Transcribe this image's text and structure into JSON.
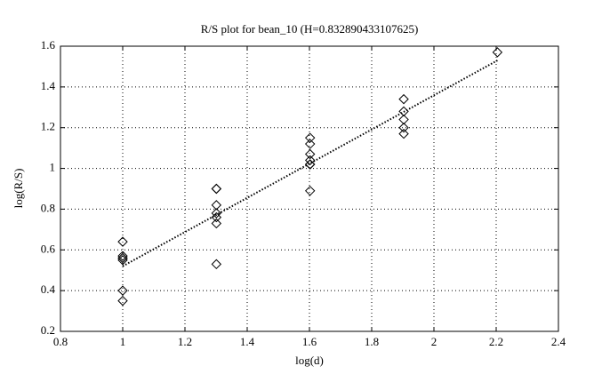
{
  "chart_data": {
    "type": "scatter",
    "title": "R/S plot for bean_10 (H=0.832890433107625)",
    "x_label": "log(d)",
    "y_label": "log(R/S)",
    "x": [
      1,
      1,
      1,
      1,
      1,
      1,
      1,
      1.301,
      1.301,
      1.301,
      1.301,
      1.301,
      1.301,
      1.301,
      1.602,
      1.602,
      1.602,
      1.602,
      1.602,
      1.602,
      1.602,
      1.903,
      1.903,
      1.903,
      1.903,
      1.903,
      2.204
    ],
    "values": [
      0.64,
      0.57,
      0.56,
      0.56,
      0.55,
      0.4,
      0.35,
      0.9,
      0.9,
      0.82,
      0.78,
      0.76,
      0.73,
      0.53,
      1.15,
      1.12,
      1.07,
      1.04,
      1.02,
      1.02,
      0.89,
      1.34,
      1.28,
      1.24,
      1.2,
      1.17,
      1.57
    ],
    "color": "#000000",
    "fit": {
      "x": [
        1,
        2.204
      ],
      "values": [
        0.52,
        1.53
      ]
    },
    "xlim": [
      0.8,
      2.4
    ],
    "xticks": [
      0.8,
      1,
      1.2,
      1.4,
      1.6,
      1.8,
      2,
      2.2,
      2.4
    ],
    "ylim": [
      0.2,
      1.6
    ],
    "yticks": [
      0.2,
      0.4,
      0.6,
      0.8,
      1,
      1.2,
      1.4,
      1.6
    ],
    "grid": true
  }
}
